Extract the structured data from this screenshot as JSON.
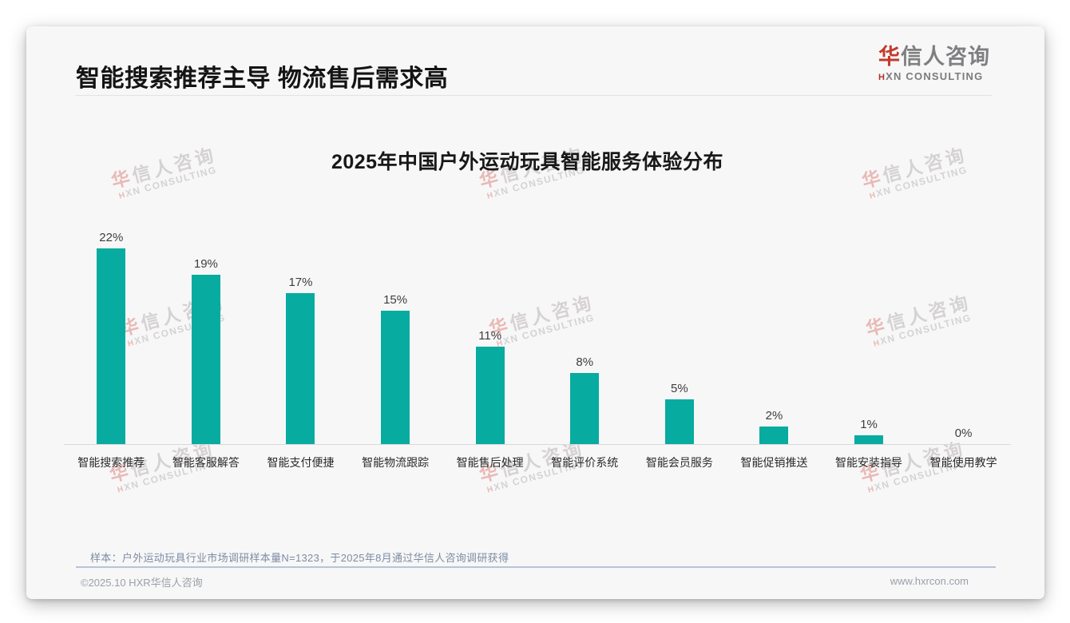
{
  "header": {
    "title": "智能搜索推荐主导 物流售后需求高"
  },
  "logo": {
    "cn_accent": "华",
    "cn_rest": "信人咨询",
    "en_accent": "H",
    "en_rest": "XN CONSULTING"
  },
  "watermark": {
    "cn_accent": "华",
    "cn_rest": "信人咨询",
    "en_accent": "H",
    "en_rest": "XN CONSULTING"
  },
  "chart_data": {
    "type": "bar",
    "title": "2025年中国户外运动玩具智能服务体验分布",
    "categories": [
      "智能搜索推荐",
      "智能客服解答",
      "智能支付便捷",
      "智能物流跟踪",
      "智能售后处理",
      "智能评价系统",
      "智能会员服务",
      "智能促销推送",
      "智能安装指导",
      "智能使用教学"
    ],
    "values": [
      22,
      19,
      17,
      15,
      11,
      8,
      5,
      2,
      1,
      0
    ],
    "value_labels": [
      "22%",
      "19%",
      "17%",
      "15%",
      "11%",
      "8%",
      "5%",
      "2%",
      "1%",
      "0%"
    ],
    "unit": "%",
    "bar_color": "#08aba0",
    "ylim": [
      0,
      22
    ],
    "grid": false,
    "legend": null,
    "xlabel": "",
    "ylabel": ""
  },
  "note": "样本：户外运动玩具行业市场调研样本量N=1323，于2025年8月通过华信人咨询调研获得",
  "footer": {
    "left": "©2025.10 HXR华信人咨询",
    "right": "www.hxrcon.com"
  }
}
